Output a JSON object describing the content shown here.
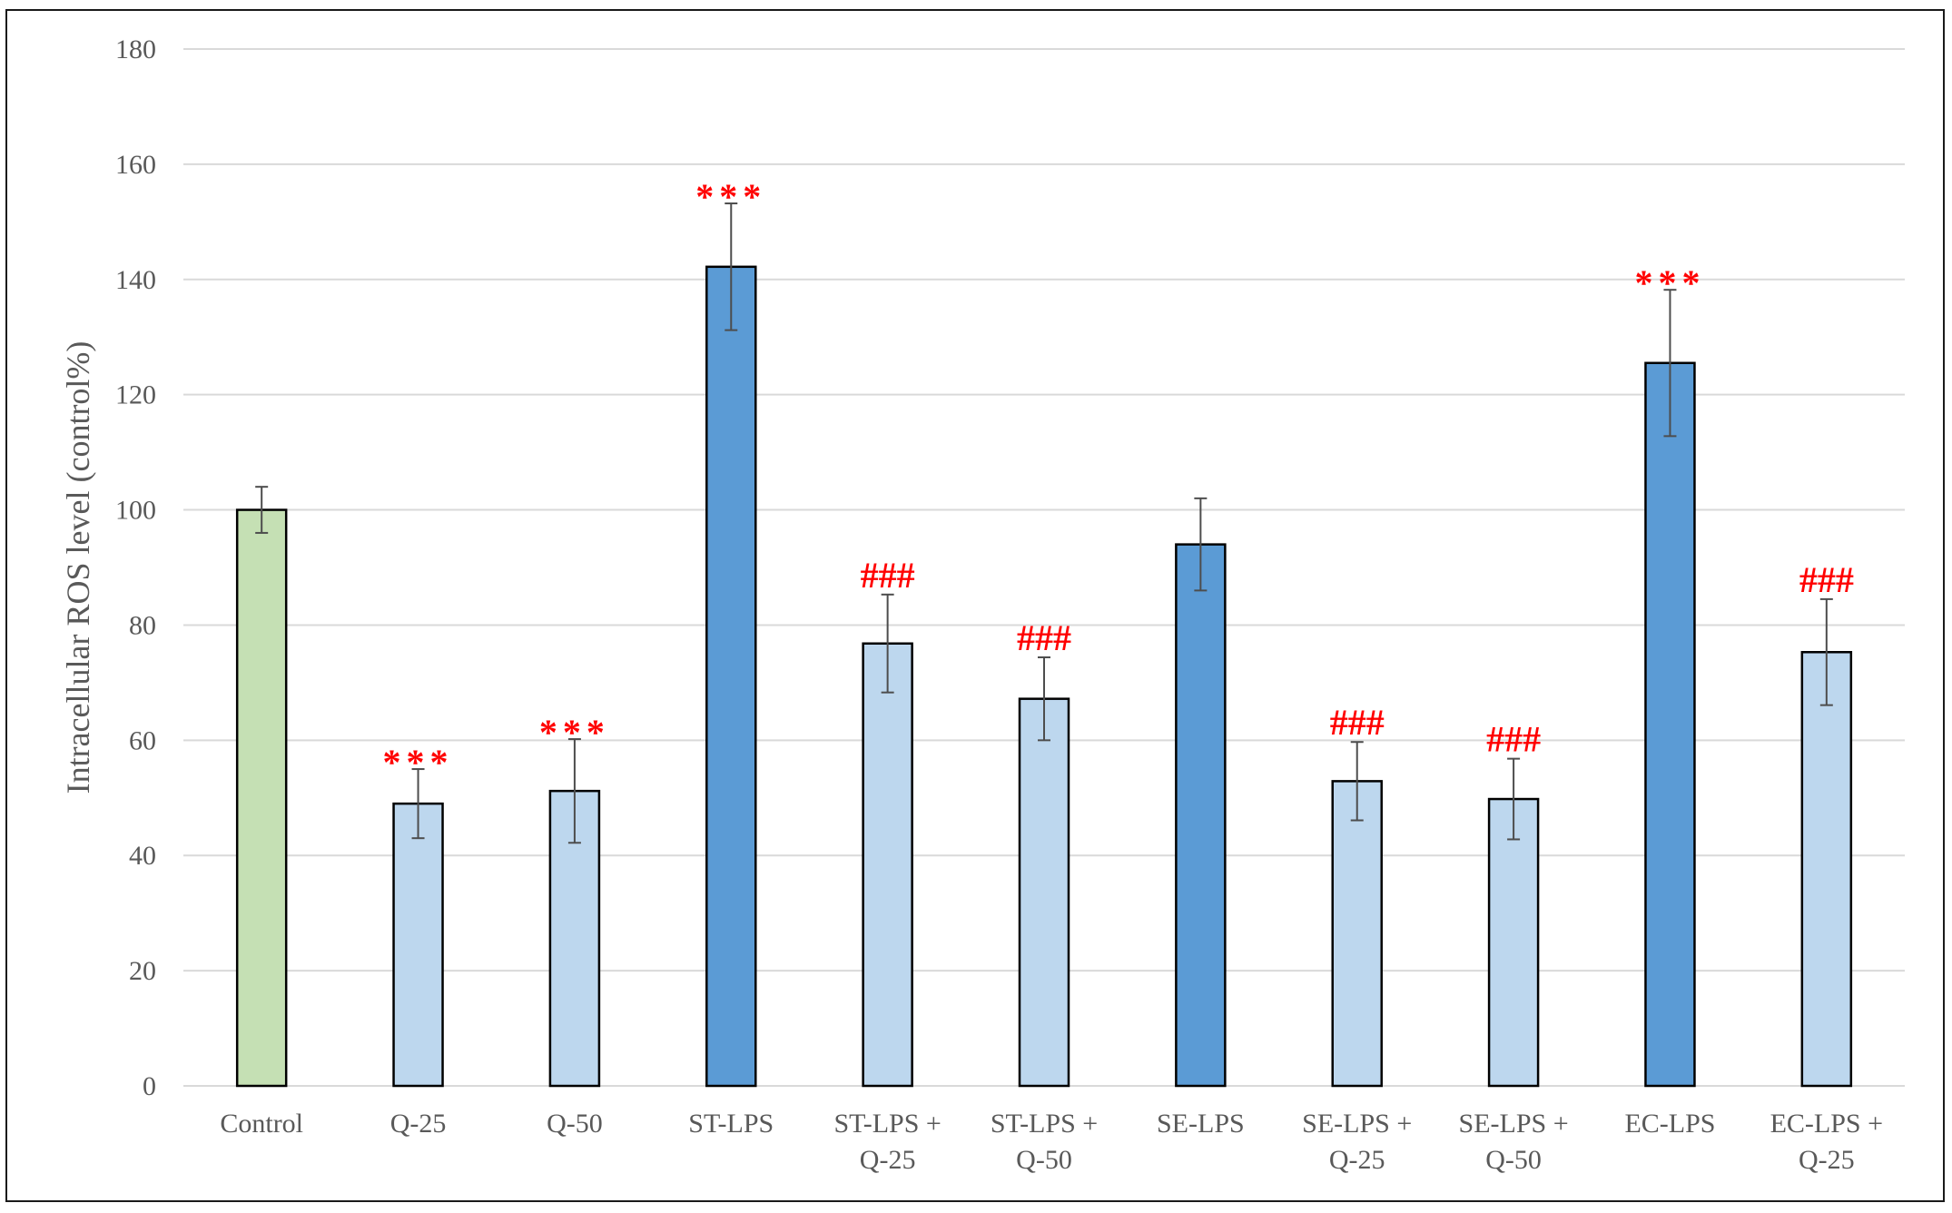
{
  "chart_data": {
    "type": "bar",
    "title": "",
    "xlabel": "",
    "ylabel": "Intracellular ROS level (control%)",
    "ylim": [
      0,
      180
    ],
    "yticks": [
      0,
      20,
      40,
      60,
      80,
      100,
      120,
      140,
      160,
      180
    ],
    "grid": true,
    "legend": "none",
    "categories": [
      [
        "Control"
      ],
      [
        "Q-25"
      ],
      [
        "Q-50"
      ],
      [
        "ST-LPS"
      ],
      [
        "ST-LPS +",
        "Q-25"
      ],
      [
        "ST-LPS +",
        "Q-50"
      ],
      [
        "SE-LPS"
      ],
      [
        "SE-LPS +",
        "Q-25"
      ],
      [
        "SE-LPS +",
        "Q-50"
      ],
      [
        "EC-LPS"
      ],
      [
        "EC-LPS +",
        "Q-25"
      ]
    ],
    "values": [
      100,
      49,
      51.2,
      142.2,
      76.8,
      67.2,
      94,
      52.9,
      49.8,
      125.5,
      75.3
    ],
    "errors": [
      4,
      6,
      9,
      11,
      8.5,
      7.2,
      8,
      6.8,
      7,
      12.7,
      9.2
    ],
    "annotations": [
      "",
      "***",
      "***",
      "***",
      "###",
      "###",
      "",
      "###",
      "###",
      "***",
      "###"
    ],
    "colors": [
      "#c5e0b4",
      "#bdd7ee",
      "#bdd7ee",
      "#5b9bd5",
      "#bdd7ee",
      "#bdd7ee",
      "#5b9bd5",
      "#bdd7ee",
      "#bdd7ee",
      "#5b9bd5",
      "#bdd7ee"
    ],
    "annotation_color": "#ff0000"
  }
}
